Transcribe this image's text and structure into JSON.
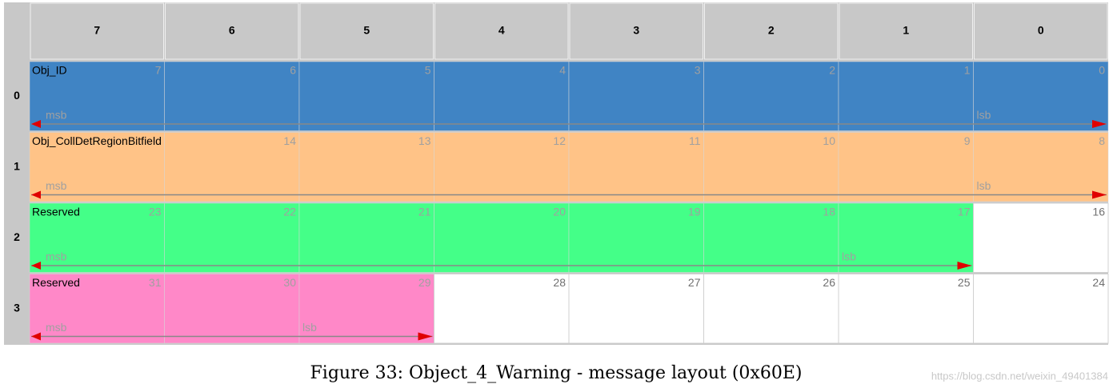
{
  "header": {
    "columns": [
      "7",
      "6",
      "5",
      "4",
      "3",
      "2",
      "1",
      "0"
    ]
  },
  "rows": [
    {
      "label": "0",
      "bits": [
        "7",
        "6",
        "5",
        "4",
        "3",
        "2",
        "1",
        "0"
      ],
      "signal": {
        "name": "Obj_ID",
        "color": "#4084c4",
        "msb": "msb",
        "lsb": "lsb"
      }
    },
    {
      "label": "1",
      "bits": [
        null,
        "14",
        "13",
        "12",
        "11",
        "10",
        "9",
        "8"
      ],
      "signal": {
        "name": "Obj_CollDetRegionBitfield",
        "color": "#ffc387",
        "msb": "msb",
        "lsb": "lsb"
      }
    },
    {
      "label": "2",
      "bits": [
        "23",
        "22",
        "21",
        "20",
        "19",
        "18",
        "17",
        "16"
      ],
      "signal": {
        "name": "Reserved",
        "color": "#44ff88",
        "msb": "msb",
        "lsb": "lsb"
      }
    },
    {
      "label": "3",
      "bits": [
        "31",
        "30",
        "29",
        "28",
        "27",
        "26",
        "25",
        "24"
      ],
      "signal": {
        "name": "Reserved",
        "color": "#ff88c8",
        "msb": "msb",
        "lsb": "lsb"
      }
    }
  ],
  "caption": "Figure 33: Object_4_Warning - message layout (0x60E)",
  "watermark": "https://blog.csdn.net/weixin_49401384"
}
